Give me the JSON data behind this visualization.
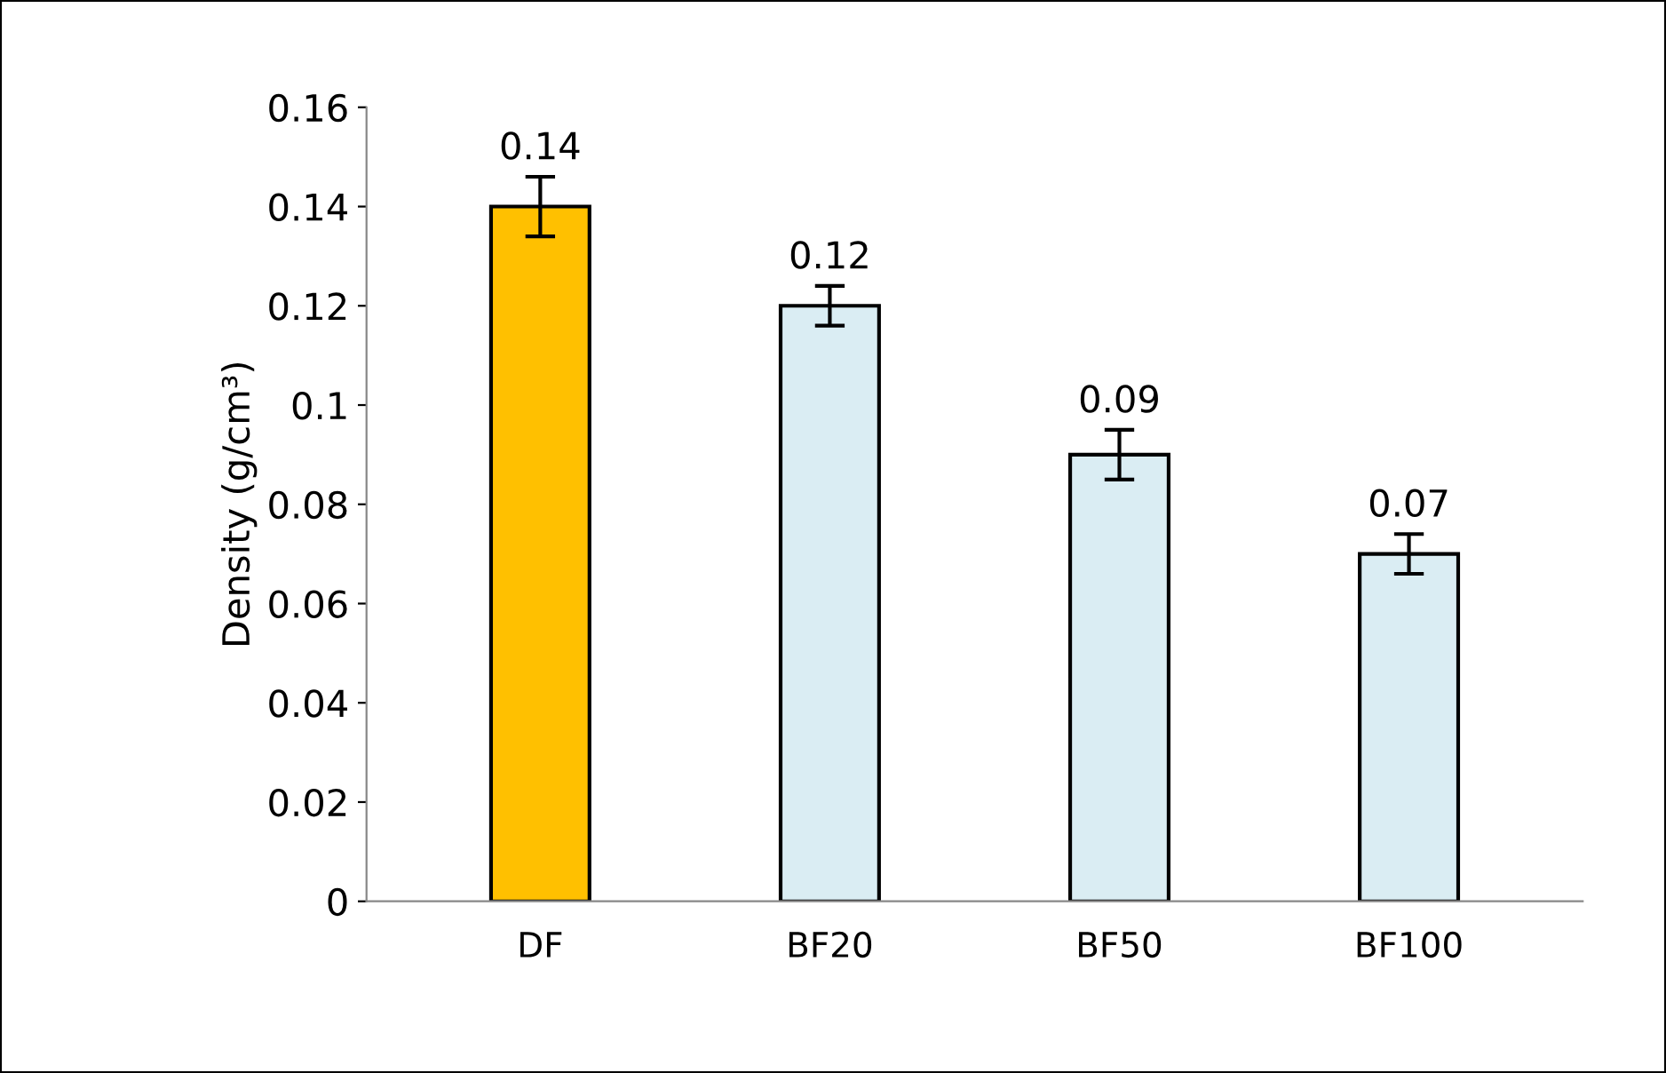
{
  "chart_data": {
    "type": "bar",
    "ylabel": "Density (g/cm³)",
    "categories": [
      "DF",
      "BF20",
      "BF50",
      "BF100"
    ],
    "values": [
      0.14,
      0.12,
      0.09,
      0.07
    ],
    "colors": [
      "#ffc000",
      "#daedf3",
      "#daedf3",
      "#daedf3"
    ],
    "errors": [
      0.006,
      0.004,
      0.005,
      0.004
    ],
    "ylim": [
      0,
      0.16
    ],
    "yticks": [
      0,
      0.02,
      0.04,
      0.06,
      0.08,
      0.1,
      0.12,
      0.14,
      0.16
    ],
    "data_labels": true,
    "grid": false,
    "legend": false
  }
}
